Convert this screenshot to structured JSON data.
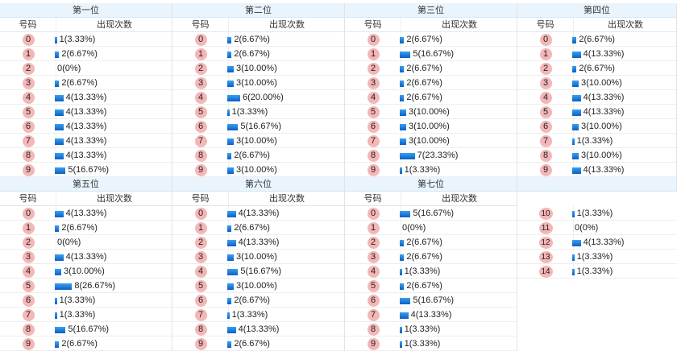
{
  "header_code": "号码",
  "header_count": "出现次数",
  "positions": [
    {
      "title": "第一位",
      "rows": [
        {
          "code": "0",
          "text": "1(3.33%)",
          "pct": 3.33
        },
        {
          "code": "1",
          "text": "2(6.67%)",
          "pct": 6.67
        },
        {
          "code": "2",
          "text": "0(0%)",
          "pct": 0
        },
        {
          "code": "3",
          "text": "2(6.67%)",
          "pct": 6.67
        },
        {
          "code": "4",
          "text": "4(13.33%)",
          "pct": 13.33
        },
        {
          "code": "5",
          "text": "4(13.33%)",
          "pct": 13.33
        },
        {
          "code": "6",
          "text": "4(13.33%)",
          "pct": 13.33
        },
        {
          "code": "7",
          "text": "4(13.33%)",
          "pct": 13.33
        },
        {
          "code": "8",
          "text": "4(13.33%)",
          "pct": 13.33
        },
        {
          "code": "9",
          "text": "5(16.67%)",
          "pct": 16.67
        }
      ]
    },
    {
      "title": "第二位",
      "rows": [
        {
          "code": "0",
          "text": "2(6.67%)",
          "pct": 6.67
        },
        {
          "code": "1",
          "text": "2(6.67%)",
          "pct": 6.67
        },
        {
          "code": "2",
          "text": "3(10.00%)",
          "pct": 10.0
        },
        {
          "code": "3",
          "text": "3(10.00%)",
          "pct": 10.0
        },
        {
          "code": "4",
          "text": "6(20.00%)",
          "pct": 20.0
        },
        {
          "code": "5",
          "text": "1(3.33%)",
          "pct": 3.33
        },
        {
          "code": "6",
          "text": "5(16.67%)",
          "pct": 16.67
        },
        {
          "code": "7",
          "text": "3(10.00%)",
          "pct": 10.0
        },
        {
          "code": "8",
          "text": "2(6.67%)",
          "pct": 6.67
        },
        {
          "code": "9",
          "text": "3(10.00%)",
          "pct": 10.0
        }
      ]
    },
    {
      "title": "第三位",
      "rows": [
        {
          "code": "0",
          "text": "2(6.67%)",
          "pct": 6.67
        },
        {
          "code": "1",
          "text": "5(16.67%)",
          "pct": 16.67
        },
        {
          "code": "2",
          "text": "2(6.67%)",
          "pct": 6.67
        },
        {
          "code": "3",
          "text": "2(6.67%)",
          "pct": 6.67
        },
        {
          "code": "4",
          "text": "2(6.67%)",
          "pct": 6.67
        },
        {
          "code": "5",
          "text": "3(10.00%)",
          "pct": 10.0
        },
        {
          "code": "6",
          "text": "3(10.00%)",
          "pct": 10.0
        },
        {
          "code": "7",
          "text": "3(10.00%)",
          "pct": 10.0
        },
        {
          "code": "8",
          "text": "7(23.33%)",
          "pct": 23.33
        },
        {
          "code": "9",
          "text": "1(3.33%)",
          "pct": 3.33
        }
      ]
    },
    {
      "title": "第四位",
      "rows": [
        {
          "code": "0",
          "text": "2(6.67%)",
          "pct": 6.67
        },
        {
          "code": "1",
          "text": "4(13.33%)",
          "pct": 13.33
        },
        {
          "code": "2",
          "text": "2(6.67%)",
          "pct": 6.67
        },
        {
          "code": "3",
          "text": "3(10.00%)",
          "pct": 10.0
        },
        {
          "code": "4",
          "text": "4(13.33%)",
          "pct": 13.33
        },
        {
          "code": "5",
          "text": "4(13.33%)",
          "pct": 13.33
        },
        {
          "code": "6",
          "text": "3(10.00%)",
          "pct": 10.0
        },
        {
          "code": "7",
          "text": "1(3.33%)",
          "pct": 3.33
        },
        {
          "code": "8",
          "text": "3(10.00%)",
          "pct": 10.0
        },
        {
          "code": "9",
          "text": "4(13.33%)",
          "pct": 13.33
        }
      ]
    },
    {
      "title": "第五位",
      "rows": [
        {
          "code": "0",
          "text": "4(13.33%)",
          "pct": 13.33
        },
        {
          "code": "1",
          "text": "2(6.67%)",
          "pct": 6.67
        },
        {
          "code": "2",
          "text": "0(0%)",
          "pct": 0
        },
        {
          "code": "3",
          "text": "4(13.33%)",
          "pct": 13.33
        },
        {
          "code": "4",
          "text": "3(10.00%)",
          "pct": 10.0
        },
        {
          "code": "5",
          "text": "8(26.67%)",
          "pct": 26.67
        },
        {
          "code": "6",
          "text": "1(3.33%)",
          "pct": 3.33
        },
        {
          "code": "7",
          "text": "1(3.33%)",
          "pct": 3.33
        },
        {
          "code": "8",
          "text": "5(16.67%)",
          "pct": 16.67
        },
        {
          "code": "9",
          "text": "2(6.67%)",
          "pct": 6.67
        }
      ]
    },
    {
      "title": "第六位",
      "rows": [
        {
          "code": "0",
          "text": "4(13.33%)",
          "pct": 13.33
        },
        {
          "code": "1",
          "text": "2(6.67%)",
          "pct": 6.67
        },
        {
          "code": "2",
          "text": "4(13.33%)",
          "pct": 13.33
        },
        {
          "code": "3",
          "text": "3(10.00%)",
          "pct": 10.0
        },
        {
          "code": "4",
          "text": "5(16.67%)",
          "pct": 16.67
        },
        {
          "code": "5",
          "text": "3(10.00%)",
          "pct": 10.0
        },
        {
          "code": "6",
          "text": "2(6.67%)",
          "pct": 6.67
        },
        {
          "code": "7",
          "text": "1(3.33%)",
          "pct": 3.33
        },
        {
          "code": "8",
          "text": "4(13.33%)",
          "pct": 13.33
        },
        {
          "code": "9",
          "text": "2(6.67%)",
          "pct": 6.67
        }
      ]
    },
    {
      "title": "第七位",
      "rows": [
        {
          "code": "0",
          "text": "5(16.67%)",
          "pct": 16.67
        },
        {
          "code": "1",
          "text": "0(0%)",
          "pct": 0
        },
        {
          "code": "2",
          "text": "2(6.67%)",
          "pct": 6.67
        },
        {
          "code": "3",
          "text": "2(6.67%)",
          "pct": 6.67
        },
        {
          "code": "4",
          "text": "1(3.33%)",
          "pct": 3.33
        },
        {
          "code": "5",
          "text": "2(6.67%)",
          "pct": 6.67
        },
        {
          "code": "6",
          "text": "5(16.67%)",
          "pct": 16.67
        },
        {
          "code": "7",
          "text": "4(13.33%)",
          "pct": 13.33
        },
        {
          "code": "8",
          "text": "1(3.33%)",
          "pct": 3.33
        },
        {
          "code": "9",
          "text": "1(3.33%)",
          "pct": 3.33
        }
      ]
    }
  ],
  "extra_rows": [
    {
      "code": "10",
      "text": "1(3.33%)",
      "pct": 3.33
    },
    {
      "code": "11",
      "text": "0(0%)",
      "pct": 0
    },
    {
      "code": "12",
      "text": "4(13.33%)",
      "pct": 13.33
    },
    {
      "code": "13",
      "text": "1(3.33%)",
      "pct": 3.33
    },
    {
      "code": "14",
      "text": "1(3.33%)",
      "pct": 3.33
    }
  ],
  "colors": {
    "ball": "#f4b6b6",
    "bar_top": "#3aa0ef",
    "bar_bottom": "#0b5fc5",
    "header_bg": "#e9f4fd"
  }
}
